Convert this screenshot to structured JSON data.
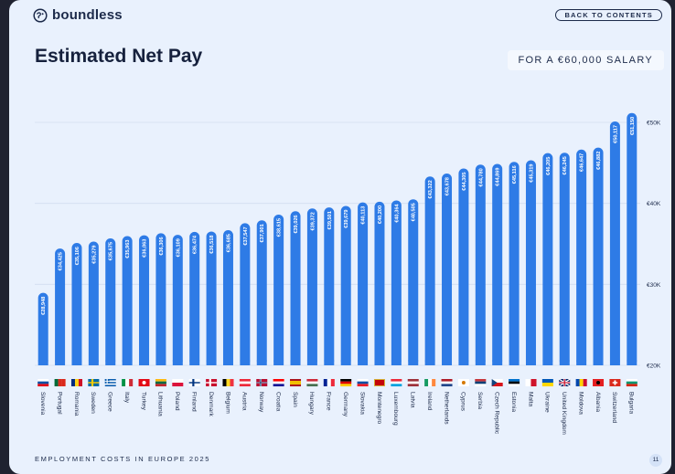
{
  "header": {
    "brand": "boundless",
    "back_label": "BACK TO CONTENTS",
    "title": "Estimated Net Pay",
    "salary_label": "FOR A €60,000 SALARY"
  },
  "footer": {
    "label": "EMPLOYMENT COSTS IN EUROPE 2025",
    "page_number": "11"
  },
  "colors": {
    "bar": "#2e7be6",
    "text": "#1c2a4a",
    "background": "#e9f1fd"
  },
  "chart_data": {
    "type": "bar",
    "title": "Estimated Net Pay",
    "xlabel": "",
    "ylabel": "",
    "ylim": [
      20000,
      50000
    ],
    "grid": true,
    "y_ticks": [
      {
        "value": 20000,
        "label": "€20K"
      },
      {
        "value": 30000,
        "label": "€30K"
      },
      {
        "value": 40000,
        "label": "€40K"
      },
      {
        "value": 50000,
        "label": "€50K"
      }
    ],
    "categories": [
      "Slovenia",
      "Portugal",
      "Romania",
      "Sweden",
      "Greece",
      "Italy",
      "Turkey",
      "Lithuania",
      "Poland",
      "Finland",
      "Denmark",
      "Belgium",
      "Austria",
      "Norway",
      "Croatia",
      "Spain",
      "Hungary",
      "France",
      "Germany",
      "Slovakia",
      "Montenegro",
      "Luxembourg",
      "Latvia",
      "Ireland",
      "Netherlands",
      "Cyprus",
      "Serbia",
      "Czech Republic",
      "Estonia",
      "Malta",
      "Ukraine",
      "United Kingdom",
      "Moldova",
      "Albania",
      "Switzerland",
      "Bulgaria"
    ],
    "values": [
      28948,
      34425,
      35106,
      35279,
      35675,
      35963,
      36063,
      36306,
      36109,
      36474,
      36518,
      36685,
      37547,
      37901,
      38615,
      39026,
      39372,
      39501,
      39679,
      40113,
      40200,
      40364,
      40505,
      43322,
      43678,
      44305,
      44780,
      44869,
      45116,
      45319,
      46205,
      46245,
      46647,
      46882,
      50117,
      51150
    ],
    "value_labels": [
      "€28,948",
      "€34,425",
      "€35,106",
      "€35,279",
      "€35,675",
      "€35,963",
      "€36,063",
      "€36,306",
      "€36,109",
      "€36,474",
      "€36,518",
      "€36,685",
      "€37,547",
      "€37,901",
      "€38,615",
      "€39,026",
      "€39,372",
      "€39,501",
      "€39,679",
      "€40,113",
      "€40,200",
      "€40,364",
      "€40,505",
      "€43,322",
      "€43,678",
      "€44,305",
      "€44,780",
      "€44,869",
      "€45,116",
      "€45,319",
      "€46,205",
      "€46,245",
      "€46,647",
      "€46,882",
      "€50,117",
      "€51,150"
    ],
    "flags": [
      {
        "type": "h",
        "colors": [
          "#ffffff",
          "#0b4ea2",
          "#e30a17"
        ]
      },
      {
        "type": "v",
        "colors": [
          "#046a38",
          "#da291c",
          "#da291c"
        ]
      },
      {
        "type": "v",
        "colors": [
          "#002b7f",
          "#fcd116",
          "#ce1126"
        ]
      },
      {
        "type": "nordic",
        "colors": [
          "#006aa7",
          "#fecc00"
        ]
      },
      {
        "type": "stripes",
        "colors": [
          "#0d5eaf",
          "#ffffff"
        ]
      },
      {
        "type": "v",
        "colors": [
          "#009246",
          "#ffffff",
          "#ce2b37"
        ]
      },
      {
        "type": "solid",
        "colors": [
          "#e30a17"
        ],
        "mark": "#ffffff"
      },
      {
        "type": "h",
        "colors": [
          "#fdb913",
          "#006a44",
          "#c1272d"
        ]
      },
      {
        "type": "h",
        "colors": [
          "#ffffff",
          "#dc143c"
        ]
      },
      {
        "type": "nordic",
        "colors": [
          "#ffffff",
          "#003580"
        ]
      },
      {
        "type": "nordic",
        "colors": [
          "#c8102e",
          "#ffffff"
        ]
      },
      {
        "type": "v",
        "colors": [
          "#000000",
          "#fdda24",
          "#ef3340"
        ]
      },
      {
        "type": "h",
        "colors": [
          "#ed2939",
          "#ffffff",
          "#ed2939"
        ]
      },
      {
        "type": "nordic",
        "colors": [
          "#ba0c2f",
          "#ffffff",
          "#00205b"
        ]
      },
      {
        "type": "h",
        "colors": [
          "#ff0000",
          "#ffffff",
          "#171796"
        ]
      },
      {
        "type": "h",
        "colors": [
          "#aa151b",
          "#f1bf00",
          "#f1bf00",
          "#aa151b"
        ]
      },
      {
        "type": "h",
        "colors": [
          "#ce2939",
          "#ffffff",
          "#477050"
        ]
      },
      {
        "type": "v",
        "colors": [
          "#002395",
          "#ffffff",
          "#ed2939"
        ]
      },
      {
        "type": "h",
        "colors": [
          "#000000",
          "#dd0000",
          "#ffce00"
        ]
      },
      {
        "type": "h",
        "colors": [
          "#ffffff",
          "#0b4ea2",
          "#ee1c25"
        ]
      },
      {
        "type": "solid",
        "colors": [
          "#d4af37"
        ],
        "inner": "#c40308"
      },
      {
        "type": "h",
        "colors": [
          "#ed2939",
          "#ffffff",
          "#00a1de"
        ]
      },
      {
        "type": "h",
        "colors": [
          "#9e3039",
          "#ffffff",
          "#9e3039"
        ]
      },
      {
        "type": "v",
        "colors": [
          "#169b62",
          "#ffffff",
          "#ff883e"
        ]
      },
      {
        "type": "h",
        "colors": [
          "#ae1c28",
          "#ffffff",
          "#21468b"
        ]
      },
      {
        "type": "solid",
        "colors": [
          "#ffffff"
        ],
        "mark": "#d57800"
      },
      {
        "type": "h",
        "colors": [
          "#c6363c",
          "#0c4076",
          "#ffffff"
        ]
      },
      {
        "type": "czech",
        "colors": [
          "#ffffff",
          "#d7141a",
          "#11457e"
        ]
      },
      {
        "type": "h",
        "colors": [
          "#0072ce",
          "#000000",
          "#ffffff"
        ]
      },
      {
        "type": "v",
        "colors": [
          "#ffffff",
          "#cf142b"
        ]
      },
      {
        "type": "h",
        "colors": [
          "#0057b7",
          "#ffd700"
        ]
      },
      {
        "type": "uk",
        "colors": [
          "#012169",
          "#ffffff",
          "#c8102e"
        ]
      },
      {
        "type": "v",
        "colors": [
          "#0046ae",
          "#ffd200",
          "#cc092f"
        ]
      },
      {
        "type": "solid",
        "colors": [
          "#e41e20"
        ],
        "mark": "#000000"
      },
      {
        "type": "swiss",
        "colors": [
          "#da291c",
          "#ffffff"
        ]
      },
      {
        "type": "h",
        "colors": [
          "#ffffff",
          "#00966e",
          "#d62612"
        ]
      }
    ]
  }
}
